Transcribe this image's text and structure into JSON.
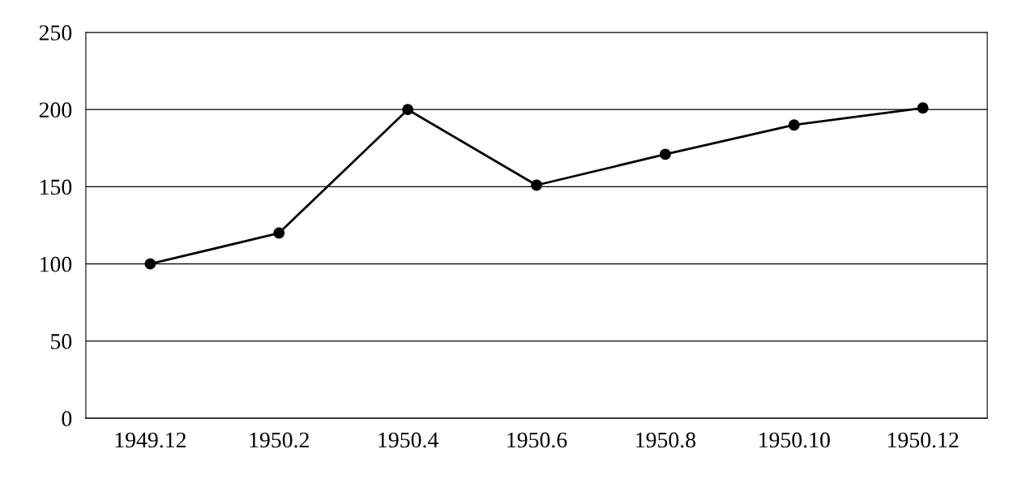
{
  "chart_data": {
    "type": "line",
    "categories": [
      "1949.12",
      "1950.2",
      "1950.4",
      "1950.6",
      "1950.8",
      "1950.10",
      "1950.12"
    ],
    "series": [
      {
        "color": "#000000",
        "values": [
          100,
          120,
          200,
          151,
          171,
          190,
          201
        ]
      }
    ],
    "ylim": [
      0,
      250
    ],
    "yticks": [
      0,
      50,
      100,
      150,
      200,
      250
    ],
    "grid": "y",
    "marker": "circle",
    "line_style": "solid"
  }
}
